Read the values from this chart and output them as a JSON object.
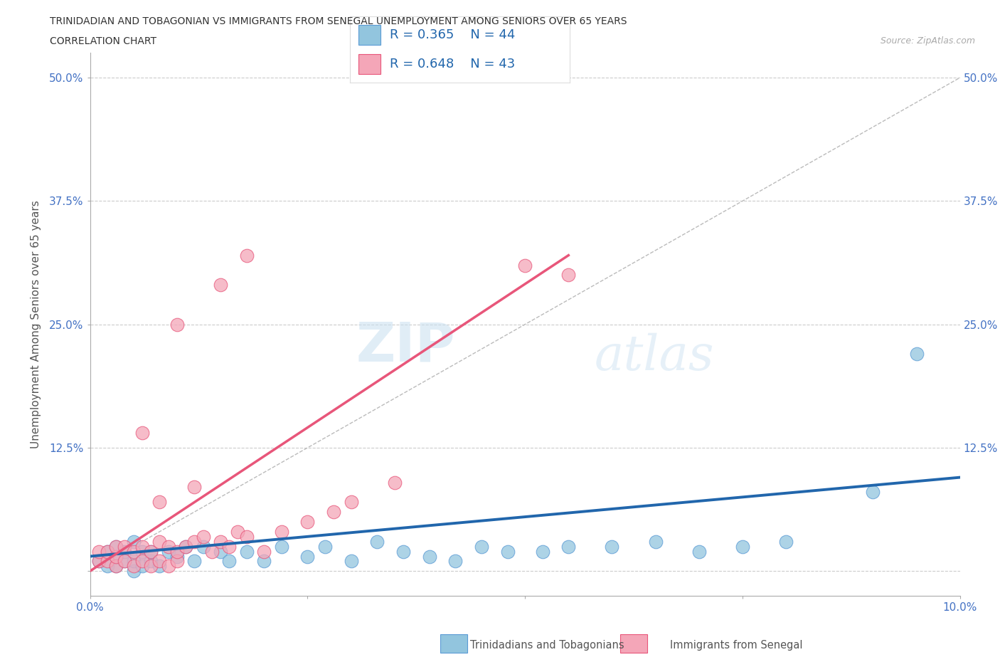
{
  "title_line1": "TRINIDADIAN AND TOBAGONIAN VS IMMIGRANTS FROM SENEGAL UNEMPLOYMENT AMONG SENIORS OVER 65 YEARS",
  "title_line2": "CORRELATION CHART",
  "source_text": "Source: ZipAtlas.com",
  "ylabel": "Unemployment Among Seniors over 65 years",
  "xlim": [
    0.0,
    0.1
  ],
  "ylim": [
    -0.025,
    0.525
  ],
  "yticks": [
    0.0,
    0.125,
    0.25,
    0.375,
    0.5
  ],
  "ytick_labels": [
    "",
    "12.5%",
    "25.0%",
    "37.5%",
    "50.0%"
  ],
  "xticks": [
    0.0,
    0.025,
    0.05,
    0.075,
    0.1
  ],
  "xtick_labels": [
    "0.0%",
    "",
    "",
    "",
    "10.0%"
  ],
  "blue_color": "#92c5de",
  "pink_color": "#f4a6b8",
  "blue_edge_color": "#5b9bd5",
  "pink_edge_color": "#e8567a",
  "blue_line_color": "#2166ac",
  "pink_line_color": "#e8567a",
  "diagonal_color": "#bbbbbb",
  "R_blue": 0.365,
  "N_blue": 44,
  "R_pink": 0.648,
  "N_pink": 43,
  "blue_scatter_x": [
    0.001,
    0.002,
    0.002,
    0.003,
    0.003,
    0.003,
    0.004,
    0.004,
    0.005,
    0.005,
    0.005,
    0.006,
    0.006,
    0.007,
    0.007,
    0.008,
    0.009,
    0.01,
    0.011,
    0.012,
    0.013,
    0.015,
    0.016,
    0.018,
    0.02,
    0.022,
    0.025,
    0.027,
    0.03,
    0.033,
    0.036,
    0.039,
    0.042,
    0.045,
    0.048,
    0.052,
    0.055,
    0.06,
    0.065,
    0.07,
    0.075,
    0.08,
    0.09,
    0.095
  ],
  "blue_scatter_y": [
    0.01,
    0.005,
    0.02,
    0.005,
    0.015,
    0.025,
    0.01,
    0.02,
    0.0,
    0.01,
    0.03,
    0.005,
    0.02,
    0.01,
    0.02,
    0.005,
    0.02,
    0.015,
    0.025,
    0.01,
    0.025,
    0.02,
    0.01,
    0.02,
    0.01,
    0.025,
    0.015,
    0.025,
    0.01,
    0.03,
    0.02,
    0.015,
    0.01,
    0.025,
    0.02,
    0.02,
    0.025,
    0.025,
    0.03,
    0.02,
    0.025,
    0.03,
    0.08,
    0.22
  ],
  "pink_scatter_x": [
    0.001,
    0.001,
    0.002,
    0.002,
    0.003,
    0.003,
    0.003,
    0.004,
    0.004,
    0.005,
    0.005,
    0.006,
    0.006,
    0.007,
    0.007,
    0.008,
    0.008,
    0.009,
    0.009,
    0.01,
    0.01,
    0.011,
    0.012,
    0.013,
    0.014,
    0.015,
    0.016,
    0.017,
    0.018,
    0.02,
    0.022,
    0.025,
    0.028,
    0.03,
    0.035,
    0.01,
    0.015,
    0.018,
    0.012,
    0.008,
    0.006,
    0.055,
    0.05
  ],
  "pink_scatter_y": [
    0.01,
    0.02,
    0.01,
    0.02,
    0.005,
    0.015,
    0.025,
    0.01,
    0.025,
    0.005,
    0.02,
    0.01,
    0.025,
    0.005,
    0.02,
    0.01,
    0.03,
    0.005,
    0.025,
    0.01,
    0.02,
    0.025,
    0.03,
    0.035,
    0.02,
    0.03,
    0.025,
    0.04,
    0.035,
    0.02,
    0.04,
    0.05,
    0.06,
    0.07,
    0.09,
    0.25,
    0.29,
    0.32,
    0.085,
    0.07,
    0.14,
    0.3,
    0.31
  ],
  "watermark_text1": "ZIP",
  "watermark_text2": "atlas",
  "background_color": "#ffffff",
  "grid_color": "#cccccc",
  "legend_label_blue": "Trinidadians and Tobagonians",
  "legend_label_pink": "Immigrants from Senegal"
}
